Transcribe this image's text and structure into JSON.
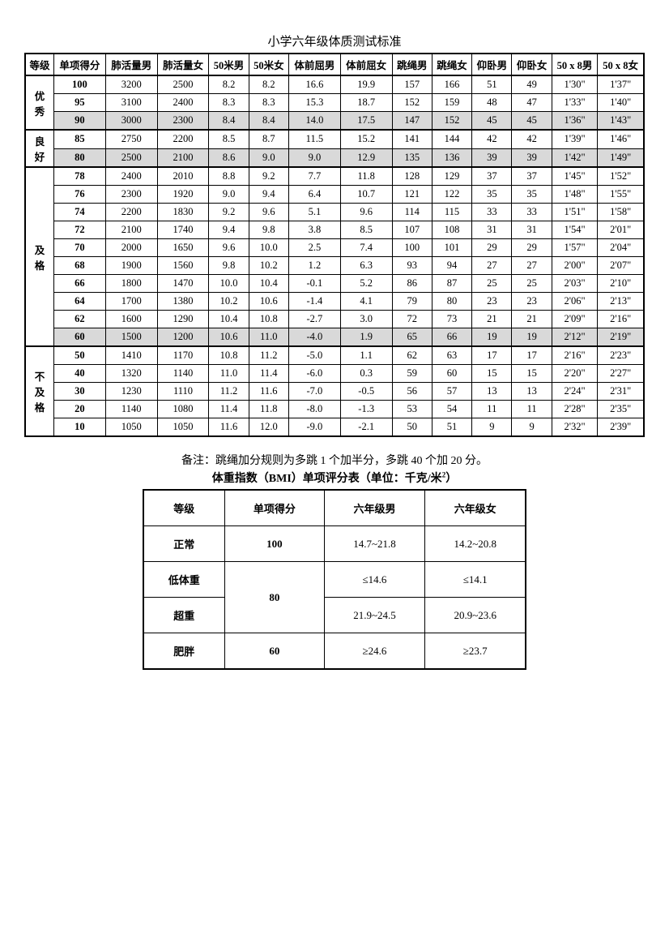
{
  "title": "小学六年级体质测试标准",
  "headers": [
    "等级",
    "单项得分",
    "肺活量男",
    "肺活量女",
    "50米男",
    "50米女",
    "体前屈男",
    "体前屈女",
    "跳绳男",
    "跳绳女",
    "仰卧男",
    "仰卧女",
    "50 x 8男",
    "50 x 8女"
  ],
  "groups": [
    {
      "grade": "优秀",
      "rows": [
        {
          "cells": [
            "100",
            "3200",
            "2500",
            "8.2",
            "8.2",
            "16.6",
            "19.9",
            "157",
            "166",
            "51",
            "49",
            "1'30\"",
            "1'37\""
          ],
          "shaded": false
        },
        {
          "cells": [
            "95",
            "3100",
            "2400",
            "8.3",
            "8.3",
            "15.3",
            "18.7",
            "152",
            "159",
            "48",
            "47",
            "1'33\"",
            "1'40\""
          ],
          "shaded": false
        },
        {
          "cells": [
            "90",
            "3000",
            "2300",
            "8.4",
            "8.4",
            "14.0",
            "17.5",
            "147",
            "152",
            "45",
            "45",
            "1'36\"",
            "1'43\""
          ],
          "shaded": true
        }
      ]
    },
    {
      "grade": "良好",
      "rows": [
        {
          "cells": [
            "85",
            "2750",
            "2200",
            "8.5",
            "8.7",
            "11.5",
            "15.2",
            "141",
            "144",
            "42",
            "42",
            "1'39\"",
            "1'46\""
          ],
          "shaded": false
        },
        {
          "cells": [
            "80",
            "2500",
            "2100",
            "8.6",
            "9.0",
            "9.0",
            "12.9",
            "135",
            "136",
            "39",
            "39",
            "1'42\"",
            "1'49\""
          ],
          "shaded": true
        }
      ]
    },
    {
      "grade": "及格",
      "rows": [
        {
          "cells": [
            "78",
            "2400",
            "2010",
            "8.8",
            "9.2",
            "7.7",
            "11.8",
            "128",
            "129",
            "37",
            "37",
            "1'45\"",
            "1'52\""
          ],
          "shaded": false
        },
        {
          "cells": [
            "76",
            "2300",
            "1920",
            "9.0",
            "9.4",
            "6.4",
            "10.7",
            "121",
            "122",
            "35",
            "35",
            "1'48\"",
            "1'55\""
          ],
          "shaded": false
        },
        {
          "cells": [
            "74",
            "2200",
            "1830",
            "9.2",
            "9.6",
            "5.1",
            "9.6",
            "114",
            "115",
            "33",
            "33",
            "1'51\"",
            "1'58\""
          ],
          "shaded": false
        },
        {
          "cells": [
            "72",
            "2100",
            "1740",
            "9.4",
            "9.8",
            "3.8",
            "8.5",
            "107",
            "108",
            "31",
            "31",
            "1'54\"",
            "2'01\""
          ],
          "shaded": false
        },
        {
          "cells": [
            "70",
            "2000",
            "1650",
            "9.6",
            "10.0",
            "2.5",
            "7.4",
            "100",
            "101",
            "29",
            "29",
            "1'57\"",
            "2'04\""
          ],
          "shaded": false
        },
        {
          "cells": [
            "68",
            "1900",
            "1560",
            "9.8",
            "10.2",
            "1.2",
            "6.3",
            "93",
            "94",
            "27",
            "27",
            "2'00\"",
            "2'07\""
          ],
          "shaded": false
        },
        {
          "cells": [
            "66",
            "1800",
            "1470",
            "10.0",
            "10.4",
            "-0.1",
            "5.2",
            "86",
            "87",
            "25",
            "25",
            "2'03\"",
            "2'10\""
          ],
          "shaded": false
        },
        {
          "cells": [
            "64",
            "1700",
            "1380",
            "10.2",
            "10.6",
            "-1.4",
            "4.1",
            "79",
            "80",
            "23",
            "23",
            "2'06\"",
            "2'13\""
          ],
          "shaded": false
        },
        {
          "cells": [
            "62",
            "1600",
            "1290",
            "10.4",
            "10.8",
            "-2.7",
            "3.0",
            "72",
            "73",
            "21",
            "21",
            "2'09\"",
            "2'16\""
          ],
          "shaded": false
        },
        {
          "cells": [
            "60",
            "1500",
            "1200",
            "10.6",
            "11.0",
            "-4.0",
            "1.9",
            "65",
            "66",
            "19",
            "19",
            "2'12\"",
            "2'19\""
          ],
          "shaded": true
        }
      ]
    },
    {
      "grade": "不及格",
      "rows": [
        {
          "cells": [
            "50",
            "1410",
            "1170",
            "10.8",
            "11.2",
            "-5.0",
            "1.1",
            "62",
            "63",
            "17",
            "17",
            "2'16\"",
            "2'23\""
          ],
          "shaded": false
        },
        {
          "cells": [
            "40",
            "1320",
            "1140",
            "11.0",
            "11.4",
            "-6.0",
            "0.3",
            "59",
            "60",
            "15",
            "15",
            "2'20\"",
            "2'27\""
          ],
          "shaded": false
        },
        {
          "cells": [
            "30",
            "1230",
            "1110",
            "11.2",
            "11.6",
            "-7.0",
            "-0.5",
            "56",
            "57",
            "13",
            "13",
            "2'24\"",
            "2'31\""
          ],
          "shaded": false
        },
        {
          "cells": [
            "20",
            "1140",
            "1080",
            "11.4",
            "11.8",
            "-8.0",
            "-1.3",
            "53",
            "54",
            "11",
            "11",
            "2'28\"",
            "2'35\""
          ],
          "shaded": false
        },
        {
          "cells": [
            "10",
            "1050",
            "1050",
            "11.6",
            "12.0",
            "-9.0",
            "-2.1",
            "50",
            "51",
            "9",
            "9",
            "2'32\"",
            "2'39\""
          ],
          "shaded": false
        }
      ]
    }
  ],
  "note": "备注：跳绳加分规则为多跳 1 个加半分，多跳 40 个加 20 分。",
  "bmi_title": "体重指数（BMI）单项评分表（单位：千克/米²）",
  "bmi_headers": [
    "等级",
    "单项得分",
    "六年级男",
    "六年级女"
  ],
  "bmi_rows": [
    {
      "label": "正常",
      "score": "100",
      "m": "14.7~21.8",
      "f": "14.2~20.8",
      "rowspan": 1
    },
    {
      "label": "低体重",
      "score": "80",
      "m": "≤14.6",
      "f": "≤14.1",
      "rowspan": 2
    },
    {
      "label": "超重",
      "score": null,
      "m": "21.9~24.5",
      "f": "20.9~23.6",
      "rowspan": 0
    },
    {
      "label": "肥胖",
      "score": "60",
      "m": "≥24.6",
      "f": "≥23.7",
      "rowspan": 1
    }
  ]
}
